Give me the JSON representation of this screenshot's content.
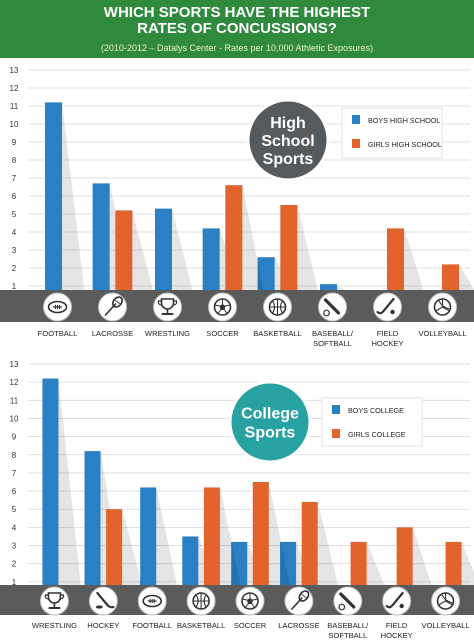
{
  "header": {
    "title_line1": "WHICH SPORTS HAVE THE HIGHEST",
    "title_line2": "RATES OF CONCUSSIONS?",
    "subtitle": "(2010-2012 – Datalys Center - Rates per 10,000 Athletic Exposures)"
  },
  "colors": {
    "boys": "#2a7fc5",
    "girls": "#e2632b",
    "header_bg": "#2f8a3e",
    "band": "#5b5b5b",
    "badge_dark": "#555a5e",
    "badge_teal": "#27a1a1"
  },
  "chart_data": [
    {
      "type": "bar",
      "badge_lines": [
        "High",
        "School",
        "Sports"
      ],
      "ylim": [
        0,
        13
      ],
      "yticks": [
        0,
        1,
        2,
        3,
        4,
        5,
        6,
        7,
        8,
        9,
        10,
        11,
        12,
        13
      ],
      "categories": [
        {
          "lines": [
            "FOOTBALL"
          ],
          "icon": "football-icon"
        },
        {
          "lines": [
            "LACROSSE"
          ],
          "icon": "lacrosse-stick-icon"
        },
        {
          "lines": [
            "WRESTLING"
          ],
          "icon": "trophy-icon"
        },
        {
          "lines": [
            "SOCCER"
          ],
          "icon": "soccer-ball-icon"
        },
        {
          "lines": [
            "BASKETBALL"
          ],
          "icon": "basketball-icon"
        },
        {
          "lines": [
            "BASEBALL/",
            "SOFTBALL"
          ],
          "icon": "baseball-bat-icon"
        },
        {
          "lines": [
            "FIELD",
            "HOCKEY"
          ],
          "icon": "field-hockey-icon"
        },
        {
          "lines": [
            "VOLLEYBALL"
          ],
          "icon": "volleyball-icon"
        }
      ],
      "series": [
        {
          "name": "BOYS HIGH SCHOOL",
          "color": "#2a7fc5",
          "values": [
            11.2,
            6.7,
            5.3,
            4.2,
            2.6,
            1.1,
            null,
            null
          ]
        },
        {
          "name": "GIRLS HIGH SCHOOL",
          "color": "#e2632b",
          "values": [
            null,
            5.2,
            null,
            6.6,
            5.5,
            null,
            4.2,
            2.2
          ]
        }
      ]
    },
    {
      "type": "bar",
      "badge_lines": [
        "College",
        "Sports"
      ],
      "ylim": [
        0,
        13
      ],
      "yticks": [
        0,
        1,
        2,
        3,
        4,
        5,
        6,
        7,
        8,
        9,
        10,
        11,
        12,
        13
      ],
      "categories": [
        {
          "lines": [
            "WRESTLING"
          ],
          "icon": "trophy-icon"
        },
        {
          "lines": [
            "HOCKEY"
          ],
          "icon": "ice-hockey-icon"
        },
        {
          "lines": [
            "FOOTBALL"
          ],
          "icon": "football-icon"
        },
        {
          "lines": [
            "BASKETBALL"
          ],
          "icon": "basketball-icon"
        },
        {
          "lines": [
            "SOCCER"
          ],
          "icon": "soccer-ball-icon"
        },
        {
          "lines": [
            "LACROSSE"
          ],
          "icon": "lacrosse-stick-icon"
        },
        {
          "lines": [
            "BASEBALL/",
            "SOFTBALL"
          ],
          "icon": "baseball-bat-icon"
        },
        {
          "lines": [
            "FIELD",
            "HOCKEY"
          ],
          "icon": "field-hockey-icon"
        },
        {
          "lines": [
            "VOLLEYBALL"
          ],
          "icon": "volleyball-icon"
        }
      ],
      "series": [
        {
          "name": "BOYS COLLEGE",
          "color": "#2a7fc5",
          "values": [
            12.2,
            8.2,
            6.2,
            3.5,
            3.2,
            3.2,
            0.8,
            null,
            null
          ]
        },
        {
          "name": "GIRLS COLLEGE",
          "color": "#e2632b",
          "values": [
            null,
            5.0,
            null,
            6.2,
            6.5,
            5.4,
            3.2,
            4.0,
            3.2
          ]
        }
      ]
    }
  ]
}
